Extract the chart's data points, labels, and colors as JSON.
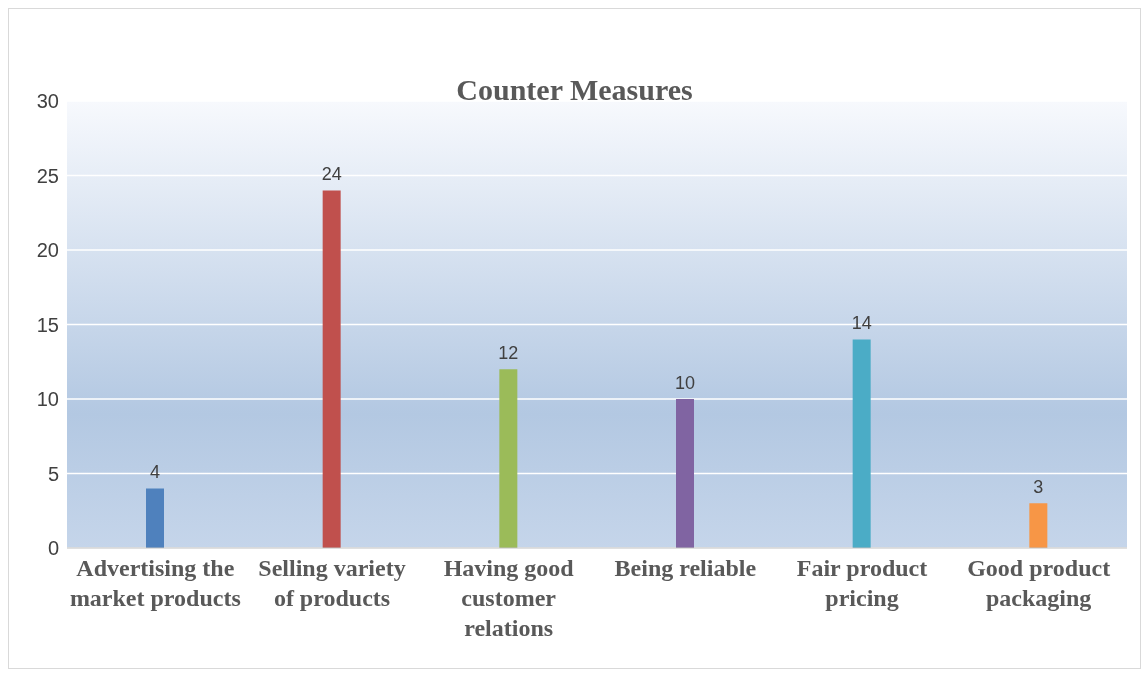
{
  "chart_data": {
    "type": "bar",
    "title": "Counter Measures",
    "categories": [
      "Advertising the market products",
      "Selling variety of products",
      "Having good customer relations",
      "Being reliable",
      "Fair product pricing",
      "Good product packaging"
    ],
    "values": [
      4,
      24,
      12,
      10,
      14,
      3
    ],
    "colors": [
      "#4f81bd",
      "#c0504d",
      "#9bbb59",
      "#8064a2",
      "#4bacc6",
      "#f79646"
    ],
    "ylim": [
      0,
      30
    ],
    "yticks": [
      0,
      5,
      10,
      15,
      20,
      25,
      30
    ],
    "grid": "y",
    "data_labels": true
  }
}
